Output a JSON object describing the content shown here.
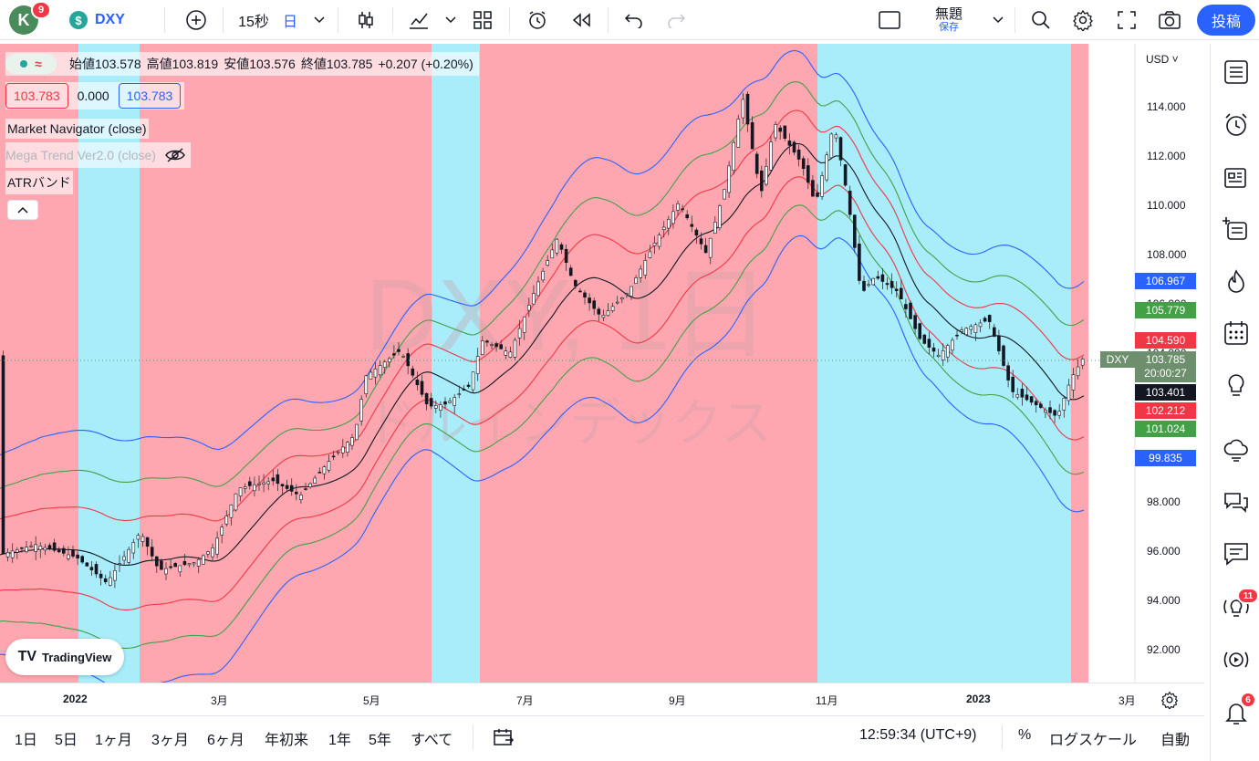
{
  "topbar": {
    "avatar_letter": "K",
    "notif_count": "9",
    "symbol_icon_letter": "$",
    "symbol": "DXY",
    "interval": "15秒",
    "timeframe": "日",
    "layout_title": "無題",
    "layout_save": "保存",
    "post_label": "投稿"
  },
  "legend": {
    "open_label": "始値",
    "open": "103.578",
    "high_label": "高値",
    "high": "103.819",
    "low_label": "安値",
    "low": "103.576",
    "close_label": "終値",
    "close": "103.785",
    "change": "+0.207 (+0.20%)",
    "bid": "103.783",
    "spread": "0.000",
    "ask": "103.783",
    "ind1": "Market Navigator (close)",
    "ind2": "Mega Trend Ver2.0 (close)",
    "ind3": "ATRバンド"
  },
  "watermark": {
    "line1": "DXY, 1日",
    "line2": "ドルインデックス"
  },
  "brand": "TradingView",
  "yaxis": {
    "currency": "USD",
    "ticks": [
      "114.000",
      "112.000",
      "110.000",
      "108.000",
      "106.000",
      "104.000",
      "98.000",
      "96.000",
      "94.000",
      "92.000"
    ],
    "price_labels": [
      {
        "value": "106.967",
        "color": "#2962ff"
      },
      {
        "value": "105.779",
        "color": "#43a047"
      },
      {
        "value": "104.590",
        "color": "#f23645"
      },
      {
        "value": "103.401",
        "color": "#131722"
      },
      {
        "value": "102.212",
        "color": "#f23645"
      },
      {
        "value": "101.024",
        "color": "#43a047"
      },
      {
        "value": "99.835",
        "color": "#2962ff"
      }
    ],
    "last_symbol": "DXY",
    "last_price": "103.785",
    "countdown": "20:00:27"
  },
  "xaxis": {
    "labels": [
      "2022",
      "3月",
      "5月",
      "7月",
      "9月",
      "11月",
      "2023",
      "3月"
    ]
  },
  "bottombar": {
    "ranges": [
      "1日",
      "5日",
      "1ヶ月",
      "3ヶ月",
      "6ヶ月",
      "年初来",
      "1年",
      "5年",
      "すべて"
    ],
    "time": "12:59:34 (UTC+9)",
    "percent": "%",
    "log": "ログスケール",
    "auto": "自動"
  },
  "sidebar": {
    "badge_ideas": "11",
    "badge_alerts": "6"
  },
  "chart_data": {
    "type": "candlestick",
    "ylim": [
      91,
      116
    ],
    "colors": {
      "up": "#26a69a",
      "down": "#ef5350",
      "ma": "#131722",
      "band1": "#f23645",
      "band2": "#43a047",
      "band3": "#2962ff"
    }
  }
}
